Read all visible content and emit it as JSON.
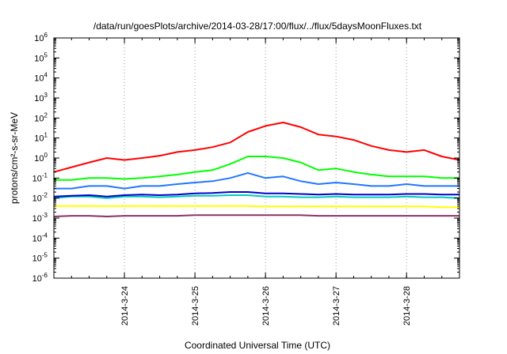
{
  "chart_data": {
    "type": "line",
    "title": "/data/run/goesPlots/archive/2014-03-28/17:00/flux/../flux/5daysMoonFluxes.txt",
    "xlabel": "Coordinated Universal Time (UTC)",
    "ylabel": "protons/cm²-s-sr-MeV",
    "y_scale": "log",
    "ylim": [
      1e-06,
      1000000.0
    ],
    "y_ticks": [
      {
        "base": "10",
        "exp": "-6",
        "value": 1e-06
      },
      {
        "base": "10",
        "exp": "-5",
        "value": 1e-05
      },
      {
        "base": "10",
        "exp": "-4",
        "value": 0.0001
      },
      {
        "base": "10",
        "exp": "-3",
        "value": 0.001
      },
      {
        "base": "10",
        "exp": "-2",
        "value": 0.01
      },
      {
        "base": "10",
        "exp": "-1",
        "value": 0.1
      },
      {
        "base": "10",
        "exp": "0",
        "value": 1
      },
      {
        "base": "10",
        "exp": "1",
        "value": 10
      },
      {
        "base": "10",
        "exp": "2",
        "value": 100
      },
      {
        "base": "10",
        "exp": "3",
        "value": 1000
      },
      {
        "base": "10",
        "exp": "4",
        "value": 10000
      },
      {
        "base": "10",
        "exp": "5",
        "value": 100000
      },
      {
        "base": "10",
        "exp": "6",
        "value": 1000000
      }
    ],
    "xlim": [
      "2014-03-23T00:00",
      "2014-03-28T18:00"
    ],
    "x_ticks": [
      {
        "label": "2014-3-24",
        "value": "2014-03-24T00:00"
      },
      {
        "label": "2014-3-25",
        "value": "2014-03-25T00:00"
      },
      {
        "label": "2014-3-26",
        "value": "2014-03-26T00:00"
      },
      {
        "label": "2014-3-27",
        "value": "2014-03-27T00:00"
      },
      {
        "label": "2014-3-28",
        "value": "2014-03-28T00:00"
      }
    ],
    "grid": true,
    "legend": "none",
    "x": [
      "2014-03-23T00:00",
      "2014-03-23T06:00",
      "2014-03-23T12:00",
      "2014-03-23T18:00",
      "2014-03-24T00:00",
      "2014-03-24T06:00",
      "2014-03-24T12:00",
      "2014-03-24T18:00",
      "2014-03-25T00:00",
      "2014-03-25T06:00",
      "2014-03-25T12:00",
      "2014-03-25T18:00",
      "2014-03-26T00:00",
      "2014-03-26T06:00",
      "2014-03-26T12:00",
      "2014-03-26T18:00",
      "2014-03-27T00:00",
      "2014-03-27T06:00",
      "2014-03-27T12:00",
      "2014-03-27T18:00",
      "2014-03-28T00:00",
      "2014-03-28T06:00",
      "2014-03-28T12:00",
      "2014-03-28T18:00"
    ],
    "series": [
      {
        "color": "#ff0000",
        "values": [
          0.2,
          0.35,
          0.6,
          1.0,
          0.8,
          1.0,
          1.3,
          2.0,
          2.5,
          3.5,
          6,
          20,
          40,
          60,
          35,
          15,
          12,
          8,
          4,
          2.5,
          2.0,
          2.5,
          1.2,
          0.8
        ]
      },
      {
        "color": "#00ff00",
        "values": [
          0.08,
          0.08,
          0.1,
          0.1,
          0.09,
          0.1,
          0.12,
          0.15,
          0.2,
          0.25,
          0.5,
          1.2,
          1.2,
          1.0,
          0.6,
          0.25,
          0.3,
          0.2,
          0.15,
          0.12,
          0.12,
          0.12,
          0.1,
          0.1
        ]
      },
      {
        "color": "#2277ff",
        "values": [
          0.03,
          0.03,
          0.04,
          0.04,
          0.03,
          0.04,
          0.04,
          0.05,
          0.06,
          0.07,
          0.1,
          0.18,
          0.1,
          0.12,
          0.07,
          0.05,
          0.06,
          0.05,
          0.04,
          0.04,
          0.05,
          0.04,
          0.04,
          0.04
        ]
      },
      {
        "color": "#00ccbb",
        "values": [
          0.01,
          0.012,
          0.012,
          0.01,
          0.012,
          0.012,
          0.011,
          0.012,
          0.013,
          0.013,
          0.014,
          0.014,
          0.012,
          0.012,
          0.011,
          0.011,
          0.012,
          0.011,
          0.011,
          0.011,
          0.012,
          0.011,
          0.011,
          0.01
        ]
      },
      {
        "color": "#0000cc",
        "values": [
          0.012,
          0.013,
          0.014,
          0.012,
          0.014,
          0.015,
          0.014,
          0.015,
          0.017,
          0.018,
          0.02,
          0.02,
          0.017,
          0.017,
          0.016,
          0.015,
          0.016,
          0.015,
          0.015,
          0.015,
          0.016,
          0.016,
          0.015,
          0.015
        ]
      },
      {
        "color": "#ffff00",
        "values": [
          0.004,
          0.004,
          0.004,
          0.004,
          0.004,
          0.004,
          0.004,
          0.004,
          0.004,
          0.004,
          0.004,
          0.004,
          0.0038,
          0.0038,
          0.0038,
          0.0038,
          0.0038,
          0.0038,
          0.0038,
          0.0038,
          0.0038,
          0.0038,
          0.0035,
          0.0035
        ]
      },
      {
        "color": "#883366",
        "values": [
          0.0012,
          0.0013,
          0.0013,
          0.0012,
          0.0013,
          0.0013,
          0.0013,
          0.0013,
          0.0014,
          0.0014,
          0.0014,
          0.0014,
          0.0014,
          0.0014,
          0.0014,
          0.0013,
          0.0013,
          0.0013,
          0.0013,
          0.0013,
          0.0013,
          0.0013,
          0.0013,
          0.0013
        ]
      }
    ]
  }
}
